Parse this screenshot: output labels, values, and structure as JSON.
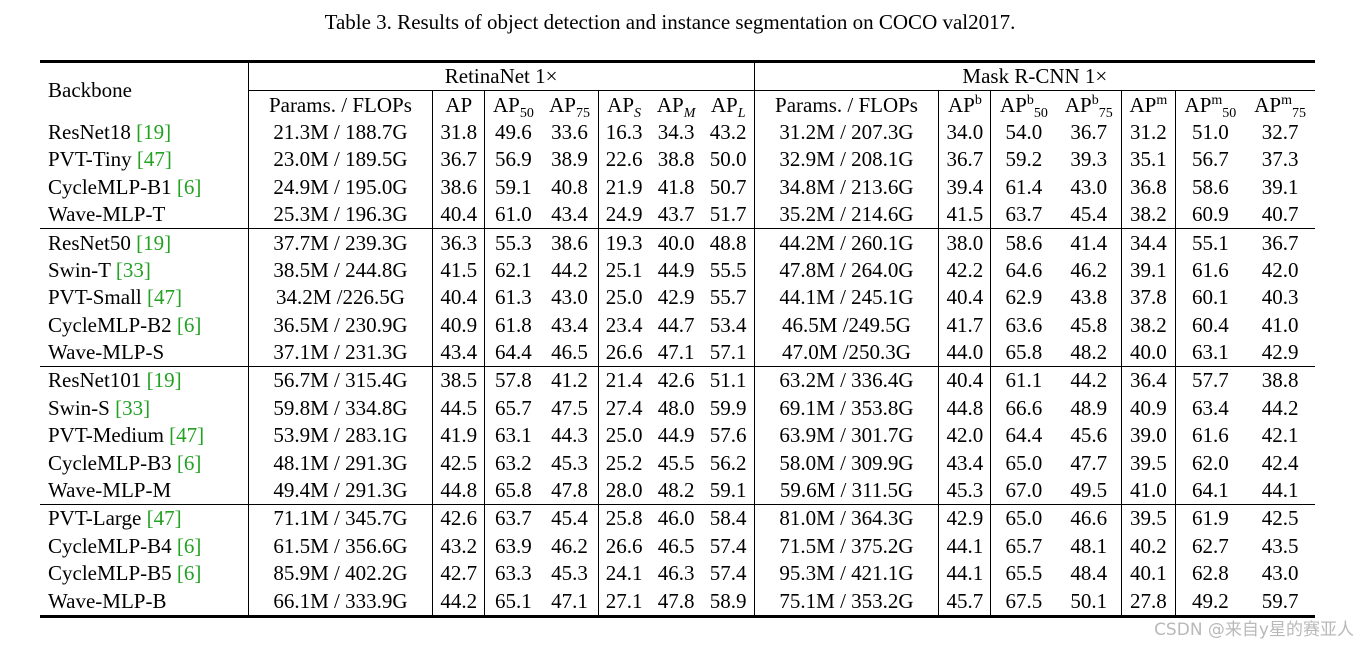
{
  "caption": "Table 3. Results of object detection and instance segmentation on COCO val2017.",
  "header": {
    "backbone": "Backbone",
    "group_retinanet": "RetinaNet 1×",
    "group_maskrcnn": "Mask R-CNN 1×",
    "params_flops": "Params. / FLOPs",
    "ap": "AP",
    "ap50_base": "AP",
    "ap50_sub": "50",
    "ap75_base": "AP",
    "ap75_sub": "75",
    "aps_base": "AP",
    "aps_sub": "S",
    "apm_base": "AP",
    "apm_sub": "M",
    "apl_base": "AP",
    "apl_sub": "L",
    "apb_base": "AP",
    "apb_sup": "b",
    "apb50_base": "AP",
    "apb50_sup": "b",
    "apb50_sub": "50",
    "apb75_base": "AP",
    "apb75_sup": "b",
    "apb75_sub": "75",
    "apm2_base": "AP",
    "apm2_sup": "m",
    "apm50_base": "AP",
    "apm50_sup": "m",
    "apm50_sub": "50",
    "apm75_base": "AP",
    "apm75_sup": "m",
    "apm75_sub": "75"
  },
  "rows": [
    {
      "name": "ResNet18 ",
      "cite": "[19]",
      "r_pf": "21.3M / 188.7G",
      "r": [
        "31.8",
        "49.6",
        "33.6",
        "16.3",
        "34.3",
        "43.2"
      ],
      "m_pf": "31.2M / 207.3G",
      "m": [
        "34.0",
        "54.0",
        "36.7",
        "31.2",
        "51.0",
        "32.7"
      ]
    },
    {
      "name": "PVT-Tiny ",
      "cite": "[47]",
      "r_pf": "23.0M / 189.5G",
      "r": [
        "36.7",
        "56.9",
        "38.9",
        "22.6",
        "38.8",
        "50.0"
      ],
      "m_pf": "32.9M / 208.1G",
      "m": [
        "36.7",
        "59.2",
        "39.3",
        "35.1",
        "56.7",
        "37.3"
      ]
    },
    {
      "name": "CycleMLP-B1 ",
      "cite": "[6]",
      "r_pf": "24.9M / 195.0G",
      "r": [
        "38.6",
        "59.1",
        "40.8",
        "21.9",
        "41.8",
        "50.7"
      ],
      "m_pf": "34.8M / 213.6G",
      "m": [
        "39.4",
        "61.4",
        "43.0",
        "36.8",
        "58.6",
        "39.1"
      ]
    },
    {
      "name": "Wave-MLP-T",
      "cite": "",
      "r_pf": "25.3M / 196.3G",
      "r": [
        "40.4",
        "61.0",
        "43.4",
        "24.9",
        "43.7",
        "51.7"
      ],
      "m_pf": "35.2M / 214.6G",
      "m": [
        "41.5",
        "63.7",
        "45.4",
        "38.2",
        "60.9",
        "40.7"
      ]
    },
    {
      "name": "ResNet50 ",
      "cite": "[19]",
      "r_pf": "37.7M / 239.3G",
      "r": [
        "36.3",
        "55.3",
        "38.6",
        "19.3",
        "40.0",
        "48.8"
      ],
      "m_pf": "44.2M / 260.1G",
      "m": [
        "38.0",
        "58.6",
        "41.4",
        "34.4",
        "55.1",
        "36.7"
      ]
    },
    {
      "name": "Swin-T ",
      "cite": "[33]",
      "r_pf": "38.5M / 244.8G",
      "r": [
        "41.5",
        "62.1",
        "44.2",
        "25.1",
        "44.9",
        "55.5"
      ],
      "m_pf": "47.8M / 264.0G",
      "m": [
        "42.2",
        "64.6",
        "46.2",
        "39.1",
        "61.6",
        "42.0"
      ]
    },
    {
      "name": "PVT-Small ",
      "cite": "[47]",
      "r_pf": "34.2M /226.5G",
      "r": [
        "40.4",
        "61.3",
        "43.0",
        "25.0",
        "42.9",
        "55.7"
      ],
      "m_pf": "44.1M / 245.1G",
      "m": [
        "40.4",
        "62.9",
        "43.8",
        "37.8",
        "60.1",
        "40.3"
      ]
    },
    {
      "name": "CycleMLP-B2 ",
      "cite": "[6]",
      "r_pf": "36.5M / 230.9G",
      "r": [
        "40.9",
        "61.8",
        "43.4",
        "23.4",
        "44.7",
        "53.4"
      ],
      "m_pf": "46.5M /249.5G",
      "m": [
        "41.7",
        "63.6",
        "45.8",
        "38.2",
        "60.4",
        "41.0"
      ]
    },
    {
      "name": "Wave-MLP-S",
      "cite": "",
      "r_pf": "37.1M / 231.3G",
      "r": [
        "43.4",
        "64.4",
        "46.5",
        "26.6",
        "47.1",
        "57.1"
      ],
      "m_pf": "47.0M /250.3G",
      "m": [
        "44.0",
        "65.8",
        "48.2",
        "40.0",
        "63.1",
        "42.9"
      ]
    },
    {
      "name": "ResNet101 ",
      "cite": "[19]",
      "r_pf": "56.7M / 315.4G",
      "r": [
        "38.5",
        "57.8",
        "41.2",
        "21.4",
        "42.6",
        "51.1"
      ],
      "m_pf": "63.2M / 336.4G",
      "m": [
        "40.4",
        "61.1",
        "44.2",
        "36.4",
        "57.7",
        "38.8"
      ]
    },
    {
      "name": "Swin-S ",
      "cite": "[33]",
      "r_pf": "59.8M / 334.8G",
      "r": [
        "44.5",
        "65.7",
        "47.5",
        "27.4",
        "48.0",
        "59.9"
      ],
      "m_pf": "69.1M / 353.8G",
      "m": [
        "44.8",
        "66.6",
        "48.9",
        "40.9",
        "63.4",
        "44.2"
      ]
    },
    {
      "name": "PVT-Medium ",
      "cite": "[47]",
      "r_pf": "53.9M / 283.1G",
      "r": [
        "41.9",
        "63.1",
        "44.3",
        "25.0",
        "44.9",
        "57.6"
      ],
      "m_pf": "63.9M / 301.7G",
      "m": [
        "42.0",
        "64.4",
        "45.6",
        "39.0",
        "61.6",
        "42.1"
      ]
    },
    {
      "name": "CycleMLP-B3 ",
      "cite": "[6]",
      "r_pf": "48.1M / 291.3G",
      "r": [
        "42.5",
        "63.2",
        "45.3",
        "25.2",
        "45.5",
        "56.2"
      ],
      "m_pf": "58.0M / 309.9G",
      "m": [
        "43.4",
        "65.0",
        "47.7",
        "39.5",
        "62.0",
        "42.4"
      ]
    },
    {
      "name": "Wave-MLP-M",
      "cite": "",
      "r_pf": "49.4M / 291.3G",
      "r": [
        "44.8",
        "65.8",
        "47.8",
        "28.0",
        "48.2",
        "59.1"
      ],
      "m_pf": "59.6M / 311.5G",
      "m": [
        "45.3",
        "67.0",
        "49.5",
        "41.0",
        "64.1",
        "44.1"
      ]
    },
    {
      "name": "PVT-Large ",
      "cite": "[47]",
      "r_pf": "71.1M / 345.7G",
      "r": [
        "42.6",
        "63.7",
        "45.4",
        "25.8",
        "46.0",
        "58.4"
      ],
      "m_pf": "81.0M / 364.3G",
      "m": [
        "42.9",
        "65.0",
        "46.6",
        "39.5",
        "61.9",
        "42.5"
      ]
    },
    {
      "name": "CycleMLP-B4 ",
      "cite": "[6]",
      "r_pf": "61.5M / 356.6G",
      "r": [
        "43.2",
        "63.9",
        "46.2",
        "26.6",
        "46.5",
        "57.4"
      ],
      "m_pf": "71.5M / 375.2G",
      "m": [
        "44.1",
        "65.7",
        "48.1",
        "40.2",
        "62.7",
        "43.5"
      ]
    },
    {
      "name": "CycleMLP-B5 ",
      "cite": "[6]",
      "r_pf": "85.9M / 402.2G",
      "r": [
        "42.7",
        "63.3",
        "45.3",
        "24.1",
        "46.3",
        "57.4"
      ],
      "m_pf": "95.3M / 421.1G",
      "m": [
        "44.1",
        "65.5",
        "48.4",
        "40.1",
        "62.8",
        "43.0"
      ]
    },
    {
      "name": "Wave-MLP-B",
      "cite": "",
      "r_pf": "66.1M / 333.9G",
      "r": [
        "44.2",
        "65.1",
        "47.1",
        "27.1",
        "47.8",
        "58.9"
      ],
      "m_pf": "75.1M / 353.2G",
      "m": [
        "45.7",
        "67.5",
        "50.1",
        "27.8",
        "49.2",
        "59.7"
      ]
    }
  ],
  "bold_cells": [
    {
      "row": 3,
      "col": "r0"
    },
    {
      "row": 3,
      "col": "m0"
    },
    {
      "row": 5,
      "col": "r5"
    },
    {
      "row": 8,
      "col": "r0"
    },
    {
      "row": 8,
      "col": "m0"
    },
    {
      "row": 13,
      "col": "r0"
    },
    {
      "row": 13,
      "col": "m0"
    },
    {
      "row": 17,
      "col": "r0"
    },
    {
      "row": 17,
      "col": "m0"
    }
  ],
  "group_starts": [
    4,
    9,
    14
  ],
  "watermark": "CSDN @来自y星的赛亚人"
}
